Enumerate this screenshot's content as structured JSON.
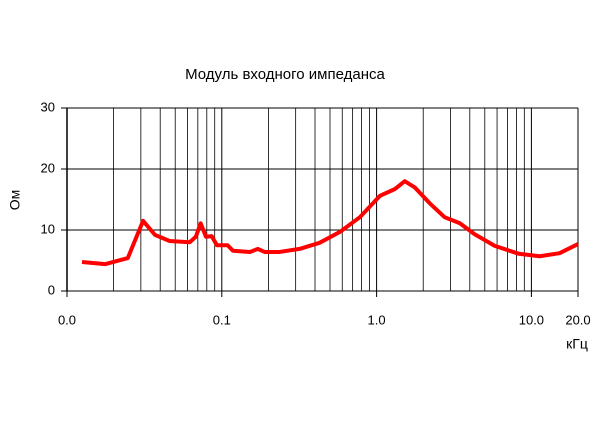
{
  "chart_data": {
    "type": "line",
    "title": "Модуль входного импеданса",
    "x_label": "кГц",
    "y_label": "Ом",
    "xscale": "log",
    "xlim": [
      0.01,
      20
    ],
    "ylim": [
      0,
      30
    ],
    "xticks": [
      {
        "value": 0.01,
        "label": "0.0"
      },
      {
        "value": 0.1,
        "label": "0.1"
      },
      {
        "value": 1,
        "label": "1.0"
      },
      {
        "value": 10,
        "label": "10.0"
      },
      {
        "value": 20,
        "label": "20.0"
      }
    ],
    "xgrid": [
      0.02,
      0.03,
      0.04,
      0.05,
      0.06,
      0.07,
      0.08,
      0.09,
      0.2,
      0.3,
      0.4,
      0.5,
      0.6,
      0.7,
      0.8,
      0.9,
      2,
      3,
      4,
      5,
      6,
      7,
      8,
      9
    ],
    "yticks": [
      0,
      10,
      20,
      30
    ],
    "grid": true,
    "series": [
      {
        "name": "Ом",
        "color": "#ff0000",
        "x": [
          0.0125,
          0.0176,
          0.0247,
          0.031,
          0.037,
          0.046,
          0.062,
          0.068,
          0.073,
          0.079,
          0.086,
          0.093,
          0.109,
          0.118,
          0.152,
          0.171,
          0.189,
          0.236,
          0.318,
          0.428,
          0.58,
          0.78,
          1.05,
          1.31,
          1.52,
          1.76,
          2.2,
          2.75,
          3.45,
          4.3,
          5.8,
          8.3,
          11.3,
          15.2,
          20
        ],
        "values": [
          4.75,
          4.4,
          5.4,
          11.5,
          9.2,
          8.2,
          8.0,
          8.9,
          11.1,
          8.9,
          9.0,
          7.5,
          7.5,
          6.6,
          6.4,
          6.9,
          6.4,
          6.4,
          6.9,
          7.9,
          9.7,
          12.1,
          15.6,
          16.7,
          18.0,
          17.0,
          14.4,
          12.1,
          11.1,
          9.3,
          7.4,
          6.1,
          5.7,
          6.2,
          7.7
        ]
      }
    ]
  }
}
